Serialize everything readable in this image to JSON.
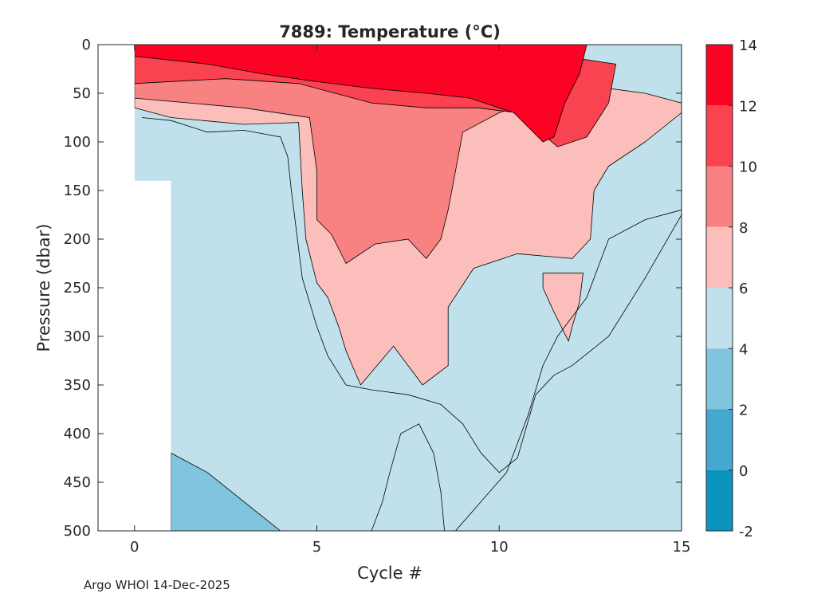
{
  "chart_data": {
    "type": "heatmap",
    "subtype": "filled-contour",
    "title": "7889:  Temperature (°C)",
    "xlabel": "Cycle #",
    "ylabel": "Pressure (dbar)",
    "xlim": [
      -1,
      15
    ],
    "ylim": [
      0,
      500
    ],
    "y_reversed": true,
    "x_ticks": [
      0,
      5,
      10,
      15
    ],
    "y_ticks": [
      0,
      50,
      100,
      150,
      200,
      250,
      300,
      350,
      400,
      450,
      500
    ],
    "colorbar": {
      "range": [
        -2,
        14
      ],
      "ticks": [
        -2,
        0,
        2,
        4,
        6,
        8,
        10,
        12,
        14
      ],
      "levels": [
        {
          "min": -2,
          "max": 0,
          "color": "#0a94be"
        },
        {
          "min": 0,
          "max": 2,
          "color": "#44a8cf"
        },
        {
          "min": 2,
          "max": 4,
          "color": "#81c4de"
        },
        {
          "min": 4,
          "max": 6,
          "color": "#c0e1ec"
        },
        {
          "min": 6,
          "max": 8,
          "color": "#fbbebb"
        },
        {
          "min": 8,
          "max": 10,
          "color": "#f88282"
        },
        {
          "min": 10,
          "max": 12,
          "color": "#f94350"
        },
        {
          "min": 12,
          "max": 14,
          "color": "#fb0324"
        }
      ]
    },
    "regions": [
      {
        "name": "3-4C water",
        "level_index": 2,
        "points": [
          [
            1,
            420
          ],
          [
            2,
            440
          ],
          [
            3,
            470
          ],
          [
            4,
            500
          ],
          [
            1,
            500
          ]
        ]
      },
      {
        "name": "6-8C layer",
        "level_index": 4,
        "points": [
          [
            0,
            20
          ],
          [
            5,
            20
          ],
          [
            8,
            20
          ],
          [
            10,
            20
          ],
          [
            12,
            40
          ],
          [
            14,
            50
          ],
          [
            15,
            60
          ],
          [
            15,
            70
          ],
          [
            14,
            100
          ],
          [
            13,
            125
          ],
          [
            12.6,
            150
          ],
          [
            12.5,
            200
          ],
          [
            12,
            220
          ],
          [
            10.5,
            215
          ],
          [
            9.3,
            230
          ],
          [
            8.6,
            270
          ],
          [
            8.6,
            330
          ],
          [
            7.9,
            350
          ],
          [
            7.1,
            310
          ],
          [
            6.2,
            350
          ],
          [
            5.8,
            315
          ],
          [
            5.6,
            290
          ],
          [
            5.3,
            260
          ],
          [
            5,
            245
          ],
          [
            4.7,
            200
          ],
          [
            4.6,
            150
          ],
          [
            4.5,
            80
          ],
          [
            3,
            82
          ],
          [
            1,
            75
          ],
          [
            0,
            65
          ]
        ]
      },
      {
        "name": "6-8C lens",
        "level_index": 4,
        "points": [
          [
            11.2,
            235
          ],
          [
            12.3,
            235
          ],
          [
            12.2,
            265
          ],
          [
            12,
            290
          ],
          [
            11.9,
            305
          ],
          [
            11.5,
            275
          ],
          [
            11.2,
            250
          ]
        ]
      },
      {
        "name": "8-10C layer",
        "level_index": 5,
        "points": [
          [
            0,
            20
          ],
          [
            5,
            20
          ],
          [
            10,
            20
          ],
          [
            12,
            45
          ],
          [
            10,
            70
          ],
          [
            9,
            90
          ],
          [
            8.8,
            130
          ],
          [
            8.6,
            170
          ],
          [
            8.4,
            200
          ],
          [
            8,
            220
          ],
          [
            7.5,
            200
          ],
          [
            6.6,
            205
          ],
          [
            5.8,
            225
          ],
          [
            5.4,
            195
          ],
          [
            5,
            180
          ],
          [
            5,
            130
          ],
          [
            4.8,
            75
          ],
          [
            3,
            65
          ],
          [
            0,
            55
          ]
        ]
      },
      {
        "name": "10-12C layer",
        "level_index": 6,
        "points": [
          [
            0,
            10
          ],
          [
            5,
            10
          ],
          [
            8,
            10
          ],
          [
            10.5,
            10
          ],
          [
            12.3,
            15
          ],
          [
            13.2,
            20
          ],
          [
            13,
            60
          ],
          [
            12.4,
            95
          ],
          [
            11.6,
            105
          ],
          [
            10.5,
            70
          ],
          [
            9.4,
            65
          ],
          [
            8,
            65
          ],
          [
            6.5,
            60
          ],
          [
            5.5,
            50
          ],
          [
            4.5,
            40
          ],
          [
            2.5,
            35
          ],
          [
            0,
            40
          ]
        ]
      },
      {
        "name": "12-14C layer",
        "level_index": 7,
        "points": [
          [
            0,
            0
          ],
          [
            12.4,
            0
          ],
          [
            12.2,
            30
          ],
          [
            11.8,
            60
          ],
          [
            11.5,
            95
          ],
          [
            11.2,
            100
          ],
          [
            10.4,
            70
          ],
          [
            9.2,
            55
          ],
          [
            8,
            50
          ],
          [
            6.5,
            45
          ],
          [
            5,
            38
          ],
          [
            3.5,
            30
          ],
          [
            2,
            20
          ],
          [
            0,
            12
          ]
        ]
      }
    ],
    "masked_regions": [
      {
        "name": "no data",
        "points": [
          [
            -1,
            0
          ],
          [
            0,
            0
          ],
          [
            0,
            140
          ],
          [
            1,
            140
          ],
          [
            1,
            500
          ],
          [
            -1,
            500
          ]
        ]
      }
    ],
    "contour_lines": [
      {
        "name": "isotherm 4C upper",
        "points": [
          [
            0.2,
            75
          ],
          [
            1,
            78
          ],
          [
            2,
            90
          ],
          [
            3,
            88
          ],
          [
            4,
            95
          ],
          [
            4.2,
            115
          ],
          [
            4.3,
            150
          ],
          [
            4.6,
            240
          ],
          [
            5,
            290
          ],
          [
            5.3,
            320
          ],
          [
            5.8,
            350
          ],
          [
            6.5,
            355
          ],
          [
            7.5,
            360
          ],
          [
            8.4,
            370
          ],
          [
            9,
            390
          ],
          [
            9.5,
            420
          ],
          [
            10,
            440
          ],
          [
            10.5,
            425
          ],
          [
            11,
            360
          ],
          [
            11.5,
            340
          ],
          [
            12,
            330
          ],
          [
            13,
            300
          ],
          [
            14,
            240
          ],
          [
            15,
            175
          ]
        ]
      },
      {
        "name": "isotherm 5C deep",
        "points": [
          [
            6.5,
            500
          ],
          [
            6.8,
            470
          ],
          [
            7,
            440
          ],
          [
            7.3,
            400
          ],
          [
            7.8,
            390
          ],
          [
            8.2,
            420
          ],
          [
            8.4,
            460
          ],
          [
            8.5,
            500
          ]
        ]
      },
      {
        "name": "isotherm 5C mid",
        "points": [
          [
            8.8,
            500
          ],
          [
            9.5,
            470
          ],
          [
            10.2,
            440
          ],
          [
            10.8,
            380
          ],
          [
            11.2,
            330
          ],
          [
            11.6,
            300
          ],
          [
            12.4,
            260
          ],
          [
            13,
            200
          ],
          [
            14,
            180
          ],
          [
            15,
            170
          ]
        ]
      }
    ]
  },
  "footer": {
    "credit": "Argo WHOI 14-Dec-2025"
  }
}
